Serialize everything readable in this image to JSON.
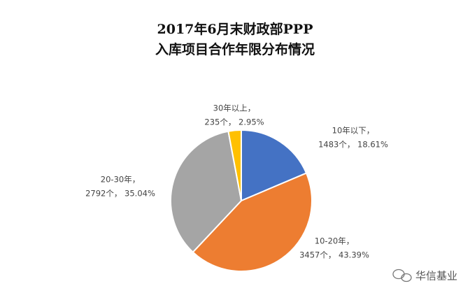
{
  "chart_data": {
    "type": "pie",
    "title": "2017年6月末财政部PPP",
    "subtitle": "入库项目合作年限分布情况",
    "categories": [
      "10年以下，",
      "10-20年，",
      "20-30年，",
      "30年以上，"
    ],
    "values": [
      18.61,
      43.39,
      35.04,
      2.95
    ],
    "value_labels": [
      "1483个， 18.61%",
      "3457个， 43.39%",
      "2792个， 35.04%",
      "235个， 2.95%"
    ],
    "colors": [
      "#4472c4",
      "#ed7d31",
      "#a5a5a5",
      "#ffc000"
    ]
  },
  "watermark": "华信基业"
}
